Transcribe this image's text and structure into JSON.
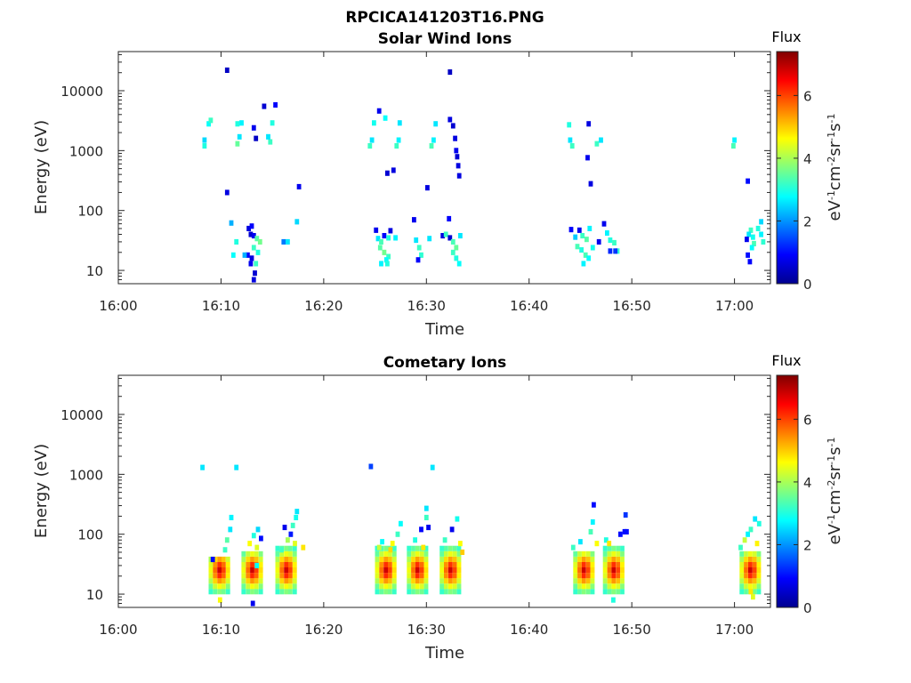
{
  "figure": {
    "title": "RPCICA141203T16.PNG"
  },
  "chart_data": [
    {
      "type": "heatmap",
      "title": "Solar Wind Ions",
      "xlabel": "Time",
      "ylabel": "Energy (eV)",
      "x_ticks": [
        "16:00",
        "16:10",
        "16:20",
        "16:30",
        "16:40",
        "16:50",
        "17:00"
      ],
      "x_range_min": [
        0,
        63.5
      ],
      "y_scale": "log",
      "y_ticks": [
        "10",
        "100",
        "1000",
        "10000"
      ],
      "y_range": [
        6,
        45000
      ],
      "colorbar": {
        "title": "Flux",
        "units": "eV-1cm-2sr-1s-1",
        "ticks": [
          "0",
          "2",
          "4",
          "6"
        ],
        "range": [
          0,
          7.4
        ]
      },
      "cells": [
        [
          8.4,
          1200,
          3
        ],
        [
          8.4,
          1500,
          2.5
        ],
        [
          8.8,
          2800,
          2.8
        ],
        [
          9.0,
          3200,
          3.2
        ],
        [
          10.6,
          22000,
          0.5
        ],
        [
          11.6,
          1300,
          3.5
        ],
        [
          11.8,
          1700,
          2.6
        ],
        [
          11.6,
          2800,
          3
        ],
        [
          12.0,
          2900,
          2.7
        ],
        [
          13.2,
          2400,
          0.8
        ],
        [
          13.4,
          1600,
          0.5
        ],
        [
          14.2,
          5500,
          0.6
        ],
        [
          15.3,
          5800,
          0.9
        ],
        [
          15.0,
          2900,
          3
        ],
        [
          14.8,
          1400,
          3.2
        ],
        [
          14.6,
          1700,
          2.6
        ],
        [
          17.6,
          250,
          0.8
        ],
        [
          10.6,
          200,
          0.7
        ],
        [
          11.0,
          62,
          2.2
        ],
        [
          11.5,
          30,
          3
        ],
        [
          12.7,
          50,
          0.7
        ],
        [
          13.0,
          55,
          0.9
        ],
        [
          12.9,
          40,
          0.6
        ],
        [
          13.2,
          38,
          0.8
        ],
        [
          13.5,
          34,
          3.4
        ],
        [
          13.8,
          30,
          3.6
        ],
        [
          13.2,
          24,
          3.2
        ],
        [
          13.6,
          20,
          3.0
        ],
        [
          12.6,
          18,
          0.9
        ],
        [
          13.0,
          16,
          0.7
        ],
        [
          13.4,
          13,
          3.2
        ],
        [
          12.9,
          13,
          0.8
        ],
        [
          13.3,
          9,
          0.6
        ],
        [
          13.2,
          7,
          0.7
        ],
        [
          16.1,
          30,
          1.8
        ],
        [
          16.5,
          30,
          2.6
        ],
        [
          17.4,
          65,
          2.5
        ],
        [
          11.2,
          18,
          2.8
        ],
        [
          12.3,
          18,
          2.2
        ],
        [
          24.5,
          1200,
          3.2
        ],
        [
          24.7,
          1500,
          2.6
        ],
        [
          24.9,
          2900,
          2.9
        ],
        [
          25.4,
          4600,
          0.8
        ],
        [
          26.0,
          3500,
          2.8
        ],
        [
          26.8,
          470,
          0.7
        ],
        [
          26.2,
          420,
          0.6
        ],
        [
          27.1,
          1200,
          3.2
        ],
        [
          27.3,
          1500,
          2.7
        ],
        [
          27.4,
          2900,
          2.6
        ],
        [
          30.5,
          1200,
          3.3
        ],
        [
          30.7,
          1500,
          2.7
        ],
        [
          30.9,
          2800,
          2.6
        ],
        [
          30.1,
          240,
          0.7
        ],
        [
          32.3,
          20500,
          0.5
        ],
        [
          32.3,
          3300,
          0.7
        ],
        [
          32.6,
          2600,
          0.6
        ],
        [
          32.8,
          1600,
          0.7
        ],
        [
          32.9,
          1000,
          0.8
        ],
        [
          33.0,
          790,
          0.6
        ],
        [
          33.1,
          560,
          0.7
        ],
        [
          33.2,
          380,
          0.7
        ],
        [
          25.1,
          47,
          0.8
        ],
        [
          25.3,
          34,
          2.6
        ],
        [
          25.6,
          30,
          3.3
        ],
        [
          25.9,
          38,
          0.9
        ],
        [
          26.3,
          35,
          3.0
        ],
        [
          25.5,
          24,
          3.4
        ],
        [
          25.9,
          20,
          3.6
        ],
        [
          26.3,
          17,
          3.2
        ],
        [
          26.1,
          15,
          2.8
        ],
        [
          25.6,
          13,
          2.7
        ],
        [
          26.2,
          13,
          3.0
        ],
        [
          26.5,
          46,
          0.7
        ],
        [
          27.0,
          35,
          2.7
        ],
        [
          28.8,
          70,
          0.8
        ],
        [
          29.0,
          32,
          2.6
        ],
        [
          29.3,
          24,
          3.2
        ],
        [
          29.5,
          18,
          3.1
        ],
        [
          29.2,
          15,
          0.9
        ],
        [
          30.3,
          34,
          2.6
        ],
        [
          31.6,
          38,
          0.7
        ],
        [
          31.9,
          40,
          3.2
        ],
        [
          32.2,
          73,
          0.9
        ],
        [
          32.3,
          35,
          0.6
        ],
        [
          32.6,
          30,
          3.3
        ],
        [
          32.9,
          24,
          3.5
        ],
        [
          32.6,
          20,
          3.2
        ],
        [
          32.9,
          16,
          3.0
        ],
        [
          33.2,
          13,
          2.8
        ],
        [
          33.3,
          38,
          2.6
        ],
        [
          43.9,
          2700,
          3.0
        ],
        [
          44.0,
          1500,
          2.6
        ],
        [
          44.2,
          1200,
          3.2
        ],
        [
          45.8,
          2800,
          0.7
        ],
        [
          46.6,
          1300,
          3.2
        ],
        [
          47.0,
          1500,
          2.6
        ],
        [
          45.7,
          760,
          0.8
        ],
        [
          46.0,
          280,
          0.7
        ],
        [
          44.1,
          48,
          0.9
        ],
        [
          44.5,
          36,
          2.4
        ],
        [
          44.9,
          47,
          0.8
        ],
        [
          45.2,
          38,
          3.2
        ],
        [
          45.6,
          33,
          3.4
        ],
        [
          45.9,
          50,
          2.7
        ],
        [
          44.7,
          25,
          3.3
        ],
        [
          45.1,
          22,
          3.0
        ],
        [
          45.5,
          18,
          3.3
        ],
        [
          45.8,
          16,
          2.8
        ],
        [
          45.3,
          13,
          2.7
        ],
        [
          46.2,
          24,
          2.9
        ],
        [
          47.3,
          60,
          0.8
        ],
        [
          47.6,
          42,
          2.7
        ],
        [
          47.9,
          32,
          3.0
        ],
        [
          48.3,
          29,
          3.2
        ],
        [
          48.6,
          21,
          3.1
        ],
        [
          47.9,
          21,
          1.2
        ],
        [
          48.4,
          21,
          1.3
        ],
        [
          46.8,
          30,
          0.8
        ],
        [
          59.9,
          1200,
          3.3
        ],
        [
          60.0,
          1500,
          2.7
        ],
        [
          61.3,
          310,
          1.0
        ],
        [
          61.6,
          47,
          3.2
        ],
        [
          61.4,
          40,
          2.6
        ],
        [
          61.8,
          36,
          2.9
        ],
        [
          61.2,
          33,
          0.8
        ],
        [
          61.9,
          28,
          3.3
        ],
        [
          61.7,
          24,
          2.8
        ],
        [
          61.3,
          18,
          1.0
        ],
        [
          61.5,
          14,
          0.9
        ],
        [
          62.6,
          65,
          2.5
        ],
        [
          62.3,
          50,
          3.0
        ],
        [
          62.6,
          40,
          2.7
        ],
        [
          62.8,
          30,
          3.1
        ]
      ]
    },
    {
      "type": "heatmap",
      "title": "Cometary Ions",
      "xlabel": "Time",
      "ylabel": "Energy (eV)",
      "x_ticks": [
        "16:00",
        "16:10",
        "16:20",
        "16:30",
        "16:40",
        "16:50",
        "17:00"
      ],
      "x_range_min": [
        0,
        63.5
      ],
      "y_scale": "log",
      "y_ticks": [
        "10",
        "100",
        "1000",
        "10000"
      ],
      "y_range": [
        6,
        45000
      ],
      "colorbar": {
        "title": "Flux",
        "units": "eV-1cm-2sr-1s-1",
        "ticks": [
          "0",
          "2",
          "4",
          "6"
        ],
        "range": [
          0,
          7.4
        ]
      },
      "clusters": [
        {
          "t": 9.9,
          "hw": 0.9,
          "top": 40
        },
        {
          "t": 13.1,
          "hw": 0.9,
          "top": 55
        },
        {
          "t": 16.4,
          "hw": 0.9,
          "top": 65
        },
        {
          "t": 26.1,
          "hw": 0.9,
          "top": 60
        },
        {
          "t": 29.2,
          "hw": 0.9,
          "top": 70
        },
        {
          "t": 32.4,
          "hw": 0.9,
          "top": 70
        },
        {
          "t": 45.4,
          "hw": 0.9,
          "top": 55
        },
        {
          "t": 48.3,
          "hw": 0.9,
          "top": 60
        },
        {
          "t": 61.6,
          "hw": 0.9,
          "top": 55
        }
      ],
      "cells": [
        [
          8.2,
          1300,
          2.6
        ],
        [
          11.5,
          1300,
          2.6
        ],
        [
          24.6,
          1350,
          1.4
        ],
        [
          30.6,
          1300,
          2.6
        ],
        [
          13.1,
          7,
          0.8
        ],
        [
          9.2,
          38,
          1.0
        ],
        [
          10.4,
          55,
          3.2
        ],
        [
          10.6,
          80,
          3.4
        ],
        [
          10.9,
          120,
          2.6
        ],
        [
          11.0,
          190,
          2.7
        ],
        [
          9.9,
          8,
          4.6
        ],
        [
          12.8,
          70,
          4.6
        ],
        [
          13.2,
          95,
          3.0
        ],
        [
          13.6,
          120,
          2.5
        ],
        [
          13.9,
          85,
          1.0
        ],
        [
          13.5,
          60,
          4.4
        ],
        [
          13.5,
          30,
          2.8
        ],
        [
          15.9,
          55,
          3.2
        ],
        [
          16.2,
          130,
          0.8
        ],
        [
          16.5,
          80,
          4.0
        ],
        [
          16.8,
          100,
          1.1
        ],
        [
          17.0,
          140,
          3.2
        ],
        [
          17.3,
          190,
          2.9
        ],
        [
          17.4,
          240,
          2.6
        ],
        [
          17.2,
          70,
          4.4
        ],
        [
          18.0,
          60,
          4.8
        ],
        [
          25.4,
          60,
          4.2
        ],
        [
          25.7,
          75,
          2.8
        ],
        [
          26.7,
          70,
          4.6
        ],
        [
          27.2,
          100,
          3.2
        ],
        [
          27.5,
          150,
          2.8
        ],
        [
          26.5,
          55,
          4.9
        ],
        [
          28.9,
          80,
          3.0
        ],
        [
          29.5,
          120,
          0.9
        ],
        [
          30.0,
          270,
          2.6
        ],
        [
          30.0,
          190,
          3.2
        ],
        [
          30.2,
          130,
          0.8
        ],
        [
          29.7,
          60,
          4.8
        ],
        [
          31.8,
          80,
          3.2
        ],
        [
          32.5,
          120,
          0.8
        ],
        [
          33.0,
          180,
          2.9
        ],
        [
          33.3,
          70,
          4.6
        ],
        [
          33.5,
          50,
          5.0
        ],
        [
          44.3,
          60,
          3.2
        ],
        [
          45.0,
          75,
          2.6
        ],
        [
          46.0,
          110,
          3.3
        ],
        [
          46.2,
          160,
          2.7
        ],
        [
          46.3,
          310,
          1.0
        ],
        [
          46.6,
          70,
          4.6
        ],
        [
          47.5,
          80,
          3.0
        ],
        [
          47.8,
          70,
          4.8
        ],
        [
          48.9,
          100,
          1.0
        ],
        [
          49.3,
          110,
          1.0
        ],
        [
          49.5,
          110,
          1.0
        ],
        [
          49.4,
          210,
          1.3
        ],
        [
          48.2,
          8,
          3.0
        ],
        [
          60.6,
          60,
          3.2
        ],
        [
          61.0,
          80,
          4.2
        ],
        [
          61.3,
          100,
          2.7
        ],
        [
          61.6,
          120,
          3.2
        ],
        [
          62.0,
          180,
          2.6
        ],
        [
          62.4,
          150,
          3.0
        ],
        [
          62.2,
          70,
          4.7
        ],
        [
          61.8,
          9,
          4.4
        ],
        [
          61.6,
          11,
          4.8
        ]
      ]
    }
  ]
}
